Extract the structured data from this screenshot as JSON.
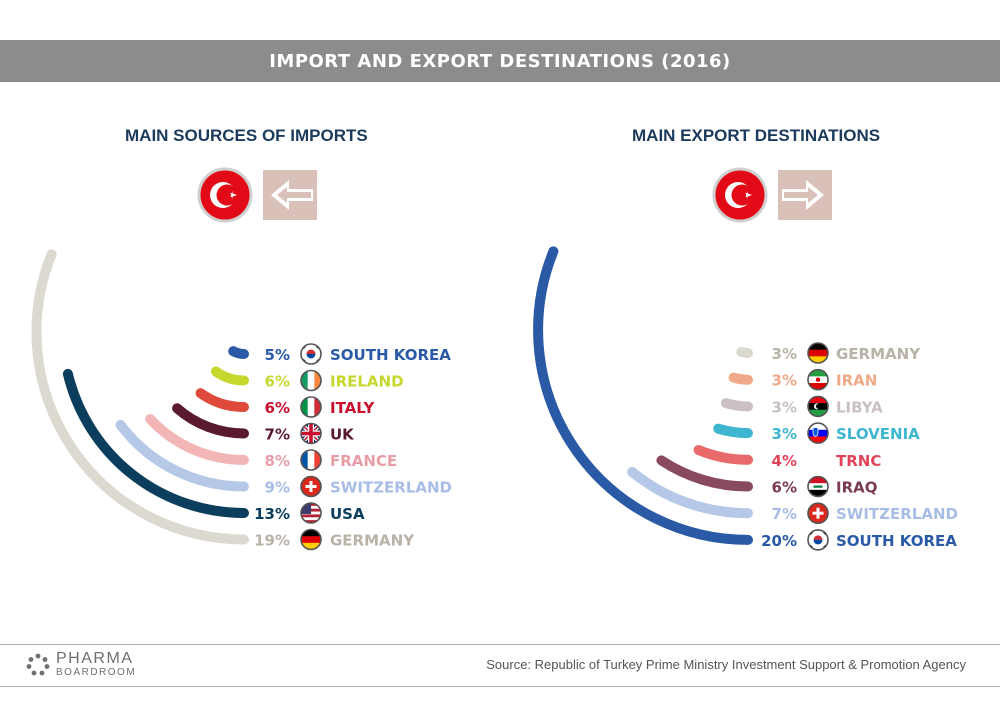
{
  "header": {
    "title": "IMPORT AND EXPORT DESTINATIONS (2016)"
  },
  "colors": {
    "banner": "#8c8c8c",
    "title": "#1b3a5c",
    "arrow": "#d9c0b8",
    "flag_red": "#e30a17"
  },
  "chart_data": [
    {
      "type": "radial-bar",
      "title": "MAIN SOURCES OF IMPORTS",
      "icons": [
        "turkey-flag-icon",
        "arrow-left-icon"
      ],
      "unit": "%",
      "series": [
        {
          "name": "SOUTH KOREA",
          "value": 5,
          "label": "5%",
          "color": "#2a5aa6",
          "pct_color": "#2a5aa6",
          "flag": "south-korea-flag-icon"
        },
        {
          "name": "IRELAND",
          "value": 6,
          "label": "6%",
          "color": "#c6d82e",
          "pct_color": "#c6d82e",
          "flag": "ireland-flag-icon"
        },
        {
          "name": "ITALY",
          "value": 6,
          "label": "6%",
          "color": "#e04a3b",
          "pct_color": "#c8102e",
          "flag": "italy-flag-icon"
        },
        {
          "name": "UK",
          "value": 7,
          "label": "7%",
          "color": "#5a1a2e",
          "pct_color": "#5a1a2e",
          "flag": "uk-flag-icon"
        },
        {
          "name": "FRANCE",
          "value": 8,
          "label": "8%",
          "color": "#f3b6b6",
          "pct_color": "#e89ca6",
          "flag": "france-flag-icon"
        },
        {
          "name": "SWITZERLAND",
          "value": 9,
          "label": "9%",
          "color": "#b6c8e8",
          "pct_color": "#a8bde6",
          "flag": "switzerland-flag-icon"
        },
        {
          "name": "USA",
          "value": 13,
          "label": "13%",
          "color": "#0b3d5c",
          "pct_color": "#0b3d5c",
          "flag": "usa-flag-icon"
        },
        {
          "name": "GERMANY",
          "value": 19,
          "label": "19%",
          "color": "#dcdad0",
          "pct_color": "#b8b3a6",
          "flag": "germany-flag-icon"
        }
      ]
    },
    {
      "type": "radial-bar",
      "title": "MAIN EXPORT DESTINATIONS",
      "icons": [
        "turkey-flag-icon",
        "arrow-right-icon"
      ],
      "unit": "%",
      "series": [
        {
          "name": "GERMANY",
          "value": 3,
          "label": "3%",
          "color": "#dcdad0",
          "pct_color": "#b8b3a6",
          "flag": "germany-flag-icon"
        },
        {
          "name": "IRAN",
          "value": 3,
          "label": "3%",
          "color": "#f2a98a",
          "pct_color": "#f2a98a",
          "flag": "iran-flag-icon"
        },
        {
          "name": "LIBYA",
          "value": 3,
          "label": "3%",
          "color": "#c9bfc4",
          "pct_color": "#c9bfc4",
          "flag": "libya-flag-icon"
        },
        {
          "name": "SLOVENIA",
          "value": 3,
          "label": "3%",
          "color": "#3fb6cf",
          "pct_color": "#3fb6cf",
          "flag": "slovenia-flag-icon"
        },
        {
          "name": "TRNC",
          "value": 4,
          "label": "4%",
          "color": "#e86a6a",
          "pct_color": "#e0445a",
          "flag": ""
        },
        {
          "name": "IRAQ",
          "value": 6,
          "label": "6%",
          "color": "#8a4a5e",
          "pct_color": "#7a3a50",
          "flag": "iraq-flag-icon"
        },
        {
          "name": "SWITZERLAND",
          "value": 7,
          "label": "7%",
          "color": "#b6c8e8",
          "pct_color": "#a8bde6",
          "flag": "switzerland-flag-icon"
        },
        {
          "name": "SOUTH KOREA",
          "value": 20,
          "label": "20%",
          "color": "#2a5aa6",
          "pct_color": "#2a5aa6",
          "flag": "south-korea-flag-icon"
        }
      ]
    }
  ],
  "footer": {
    "logo_main": "PHARMA",
    "logo_sub": "BOARDROOM",
    "source": "Source:  Republic of Turkey Prime Ministry Investment Support & Promotion Agency"
  }
}
